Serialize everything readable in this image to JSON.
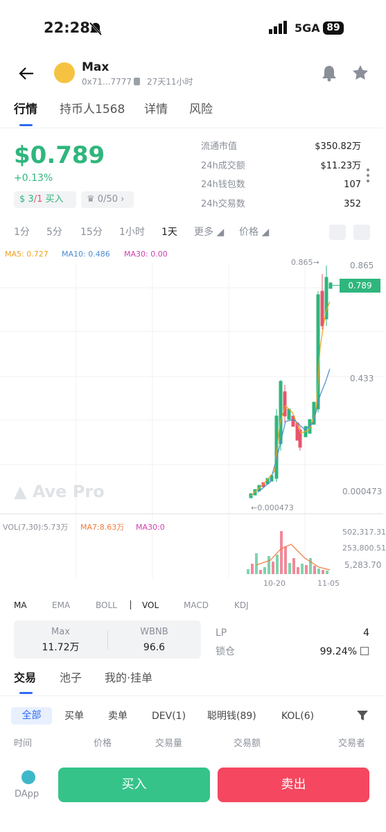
{
  "status_bar": {
    "time": "22:28",
    "network": "5GA",
    "battery": "89"
  },
  "header": {
    "name": "Max",
    "address": "0x71...7777",
    "age": "27天11小时"
  },
  "tabs": [
    "行情",
    "持币人1568",
    "详情",
    "风险"
  ],
  "price": {
    "value": "$0.789",
    "change": "+0.13%"
  },
  "badges": [
    {
      "count": "3",
      "total": "/1",
      "label": "买入"
    },
    {
      "count": "0/50"
    }
  ],
  "stats": [
    {
      "label": "流通市值",
      "value": "$350.82万"
    },
    {
      "label": "24h成交额",
      "value": "$11.23万"
    },
    {
      "label": "24h钱包数",
      "value": "107"
    },
    {
      "label": "24h交易数",
      "value": "352"
    }
  ],
  "timeframes": [
    "1分",
    "5分",
    "15分",
    "1小时",
    "1天",
    "更多",
    "价格"
  ],
  "ma_legend": [
    "MA5: 0.727",
    "MA10: 0.486",
    "MA30: 0.00"
  ],
  "chart": {
    "price_labels": [
      "0.865",
      "0.433",
      "0.000473"
    ],
    "current_price": "0.789",
    "high_note": "0.865→",
    "low_note": "←0.000473",
    "watermark": "Ave Pro",
    "vol_legend": [
      "VOL(7,30):5.73万",
      "MA7:8.63万",
      "MA30:0"
    ],
    "vol_labels": [
      "502,317.31",
      "253,800.51",
      "5,283.70"
    ],
    "dates": [
      "10-20",
      "11-05"
    ]
  },
  "indicators": [
    "MA",
    "EMA",
    "BOLL",
    "VOL",
    "MACD",
    "KDJ"
  ],
  "pool": {
    "token_a": "Max",
    "amount_a": "11.72万",
    "token_b": "WBNB",
    "amount_b": "96.6",
    "lp_label": "LP",
    "lp_value": "4",
    "lock_label": "锁仓",
    "lock_value": "99.24%"
  },
  "trade_tabs": [
    "交易",
    "池子",
    "我的·挂单"
  ],
  "filters": [
    "全部",
    "买单",
    "卖单",
    "DEV(1)",
    "聪明钱(89)",
    "KOL(6)"
  ],
  "columns": [
    "时间",
    "价格",
    "交易量",
    "交易额",
    "交易者"
  ],
  "bottom": {
    "dapp": "DApp",
    "buy": "买入",
    "sell": "卖出"
  }
}
